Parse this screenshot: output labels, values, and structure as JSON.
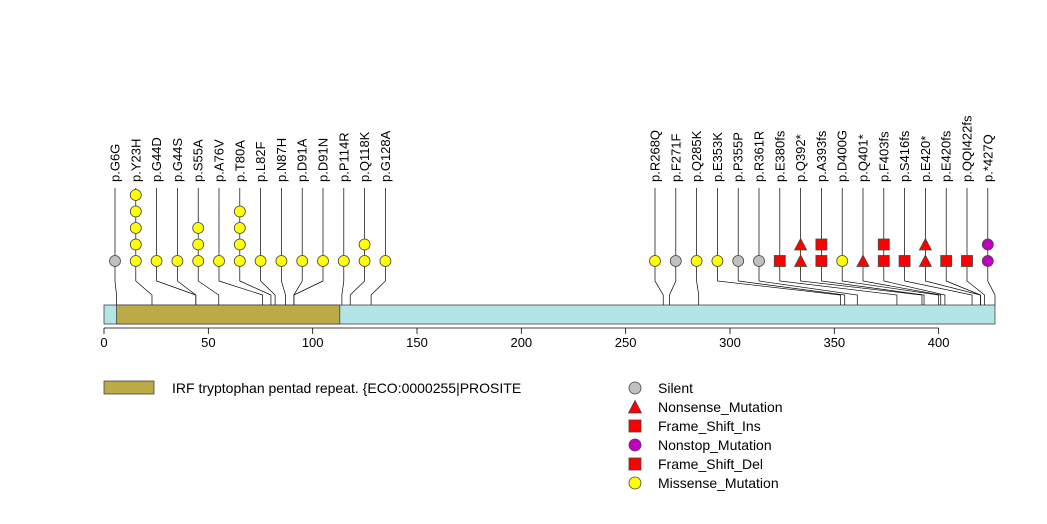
{
  "chart_data": {
    "type": "lollipop",
    "title": "",
    "xlabel": "",
    "ylabel": "",
    "protein_length": 427,
    "xlim": [
      0,
      427
    ],
    "x_ticks": [
      0,
      50,
      100,
      150,
      200,
      250,
      300,
      350,
      400
    ],
    "domains": [
      {
        "name": "IRF tryptophan pentad repeat. {ECO:0000255|PROSITE",
        "start": 6,
        "end": 113,
        "color": "#bcaa46"
      }
    ],
    "protein_color": "#b3e4e6",
    "mutation_types": {
      "Silent": {
        "shape": "circle",
        "color": "#c0c0c0"
      },
      "Nonsense_Mutation": {
        "shape": "triangle",
        "color": "#ff0000"
      },
      "Frame_Shift_Ins": {
        "shape": "square",
        "color": "#ff0000"
      },
      "Nonstop_Mutation": {
        "shape": "circle",
        "color": "#c000c0"
      },
      "Frame_Shift_Del": {
        "shape": "square",
        "color": "#ff0000"
      },
      "Missense_Mutation": {
        "shape": "circle",
        "color": "#ffff00"
      }
    },
    "legend_order": [
      "Silent",
      "Nonsense_Mutation",
      "Frame_Shift_Ins",
      "Nonstop_Mutation",
      "Frame_Shift_Del",
      "Missense_Mutation"
    ],
    "mutations": [
      {
        "label": "p.G6G",
        "position": 6,
        "markers": [
          "Silent"
        ]
      },
      {
        "label": "p.Y23H",
        "position": 23,
        "markers": [
          "Missense_Mutation",
          "Missense_Mutation",
          "Missense_Mutation",
          "Missense_Mutation",
          "Missense_Mutation"
        ]
      },
      {
        "label": "p.G44D",
        "position": 44,
        "markers": [
          "Missense_Mutation"
        ]
      },
      {
        "label": "p.G44S",
        "position": 44,
        "markers": [
          "Missense_Mutation"
        ]
      },
      {
        "label": "p.S55A",
        "position": 55,
        "markers": [
          "Missense_Mutation",
          "Missense_Mutation",
          "Missense_Mutation"
        ]
      },
      {
        "label": "p.A76V",
        "position": 76,
        "markers": [
          "Missense_Mutation"
        ]
      },
      {
        "label": "p.T80A",
        "position": 80,
        "markers": [
          "Missense_Mutation",
          "Missense_Mutation",
          "Missense_Mutation",
          "Missense_Mutation"
        ]
      },
      {
        "label": "p.L82F",
        "position": 82,
        "markers": [
          "Missense_Mutation"
        ]
      },
      {
        "label": "p.N87H",
        "position": 87,
        "markers": [
          "Missense_Mutation"
        ]
      },
      {
        "label": "p.D91A",
        "position": 91,
        "markers": [
          "Missense_Mutation"
        ]
      },
      {
        "label": "p.D91N",
        "position": 91,
        "markers": [
          "Missense_Mutation"
        ]
      },
      {
        "label": "p.P114R",
        "position": 114,
        "markers": [
          "Missense_Mutation"
        ]
      },
      {
        "label": "p.Q118K",
        "position": 118,
        "markers": [
          "Missense_Mutation",
          "Missense_Mutation"
        ]
      },
      {
        "label": "p.G128A",
        "position": 128,
        "markers": [
          "Missense_Mutation"
        ]
      },
      {
        "label": "p.R268Q",
        "position": 268,
        "markers": [
          "Missense_Mutation"
        ]
      },
      {
        "label": "p.F271F",
        "position": 271,
        "markers": [
          "Silent"
        ]
      },
      {
        "label": "p.Q285K",
        "position": 285,
        "markers": [
          "Missense_Mutation"
        ]
      },
      {
        "label": "p.E353K",
        "position": 353,
        "markers": [
          "Missense_Mutation"
        ]
      },
      {
        "label": "p.P355P",
        "position": 355,
        "markers": [
          "Silent"
        ]
      },
      {
        "label": "p.R361R",
        "position": 361,
        "markers": [
          "Silent"
        ]
      },
      {
        "label": "p.E380fs",
        "position": 380,
        "markers": [
          "Frame_Shift_Del"
        ]
      },
      {
        "label": "p.Q392*",
        "position": 392,
        "markers": [
          "Nonsense_Mutation",
          "Nonsense_Mutation"
        ]
      },
      {
        "label": "p.A393fs",
        "position": 393,
        "markers": [
          "Frame_Shift_Del",
          "Frame_Shift_Ins"
        ]
      },
      {
        "label": "p.D400G",
        "position": 400,
        "markers": [
          "Missense_Mutation"
        ]
      },
      {
        "label": "p.Q401*",
        "position": 401,
        "markers": [
          "Nonsense_Mutation"
        ]
      },
      {
        "label": "p.F403fs",
        "position": 403,
        "markers": [
          "Frame_Shift_Del",
          "Frame_Shift_Ins"
        ]
      },
      {
        "label": "p.S416fs",
        "position": 416,
        "markers": [
          "Frame_Shift_Del"
        ]
      },
      {
        "label": "p.E420*",
        "position": 420,
        "markers": [
          "Nonsense_Mutation",
          "Nonsense_Mutation"
        ]
      },
      {
        "label": "p.E420fs",
        "position": 420,
        "markers": [
          "Frame_Shift_Del"
        ]
      },
      {
        "label": "p.QQI422fs",
        "position": 422,
        "markers": [
          "Frame_Shift_Del"
        ]
      },
      {
        "label": "p.*427Q",
        "position": 427,
        "markers": [
          "Nonstop_Mutation",
          "Nonstop_Mutation"
        ]
      }
    ]
  }
}
